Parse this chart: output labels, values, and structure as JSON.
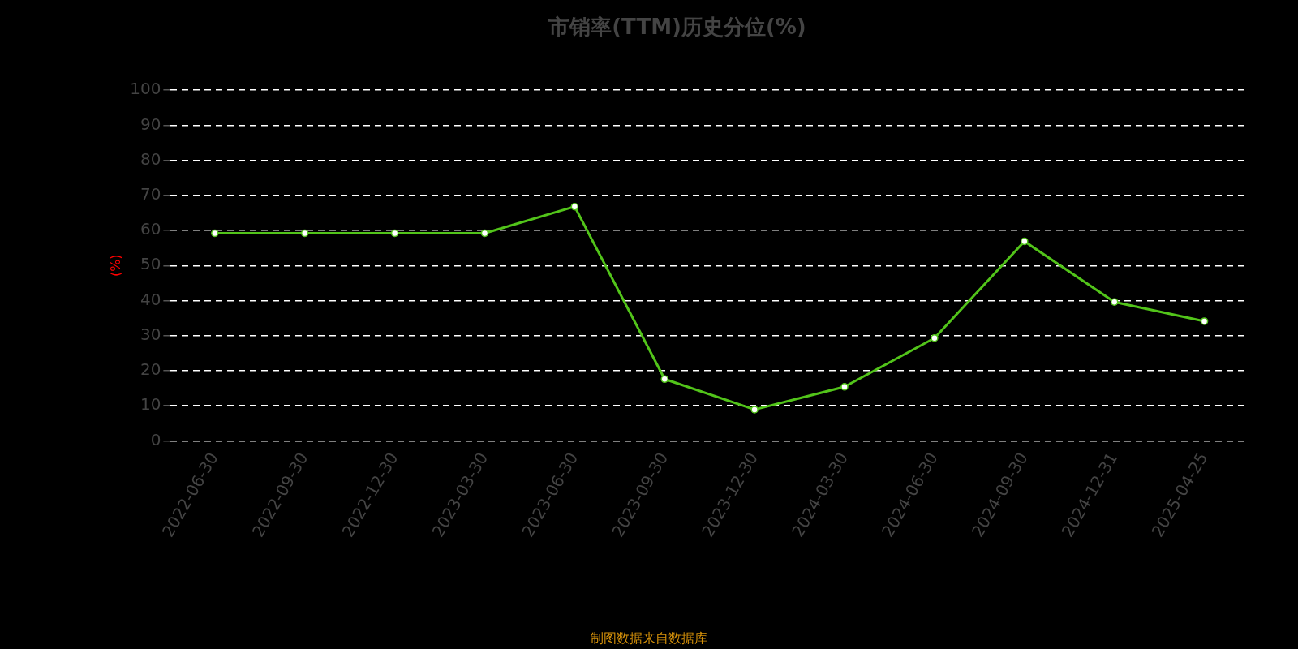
{
  "chart_data": {
    "type": "line",
    "title": "市销率(TTM)历史分位(%)",
    "ylabel": "(%)",
    "categories": [
      "2022-06-30",
      "2022-09-30",
      "2022-12-30",
      "2023-03-30",
      "2023-06-30",
      "2023-09-30",
      "2023-12-30",
      "2024-03-30",
      "2024-06-30",
      "2024-09-30",
      "2024-12-31",
      "2025-04-25"
    ],
    "series": [
      {
        "color": "#52c41a",
        "values": [
          59.2,
          59.2,
          59.2,
          59.2,
          66.8,
          17.6,
          8.9,
          15.4,
          29.3,
          56.9,
          39.6,
          34.1
        ]
      }
    ],
    "ylim": [
      0,
      100
    ],
    "yticks": [
      0,
      10,
      20,
      30,
      40,
      50,
      60,
      70,
      80,
      90,
      100
    ],
    "grid": "y",
    "legend": false,
    "marker": "circle",
    "line_style": "solid",
    "annotations": [
      "制图数据来自数据库"
    ]
  }
}
